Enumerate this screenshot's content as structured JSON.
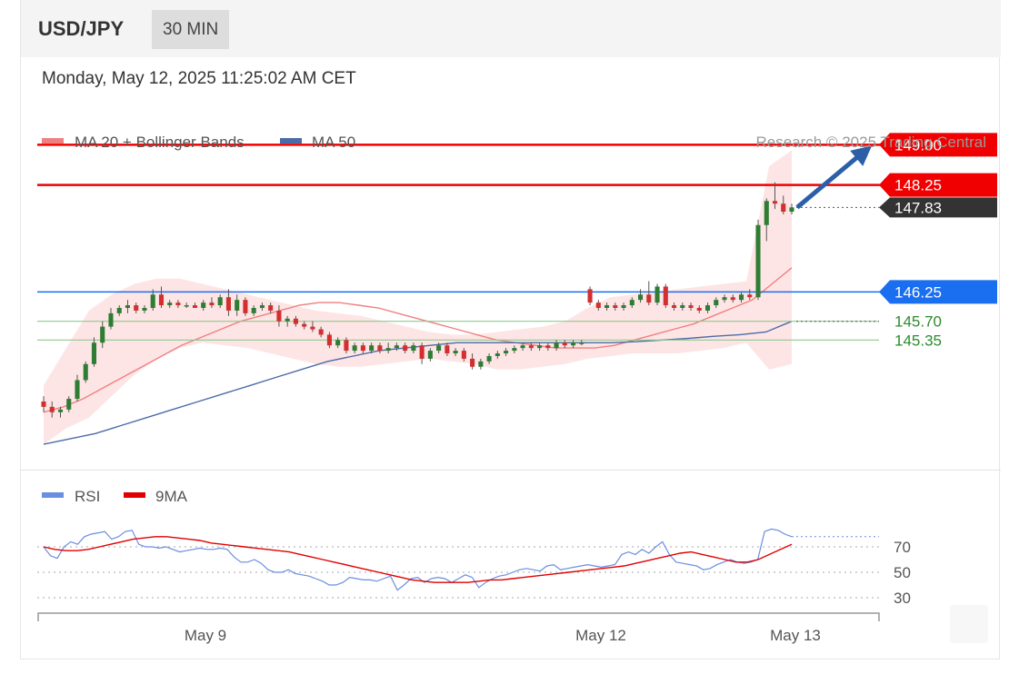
{
  "header": {
    "symbol": "USD/JPY",
    "timeframe": "30 MIN"
  },
  "datetime": "Monday, May 12, 2025 11:25:02 AM CET",
  "copyright": "Research © 2025 Trading Central",
  "colors": {
    "resistance": "#f00000",
    "support": "#1a6ef0",
    "minor_support": "#8fc98f",
    "price_tag": "#333333",
    "up_candle": "#2e7d32",
    "down_candle": "#d32f2f",
    "ma20": "#f08080",
    "ma50": "#4b6ca8",
    "band_fill": "#fde0e0",
    "arrow": "#2c5fa8",
    "rsi": "#6a8ee0",
    "rsi_ma": "#e00000"
  },
  "chart_data": [
    {
      "type": "candlestick",
      "title": "USD/JPY 30 MIN",
      "legend": [
        {
          "name": "MA 20 + Bollinger Bands",
          "color": "#f08080"
        },
        {
          "name": "MA 50",
          "color": "#2c5fa8"
        }
      ],
      "legend_position": "top-left",
      "ylim": [
        143.3,
        149.5
      ],
      "x_labels": [
        "May 9",
        "May 12",
        "May 13"
      ],
      "levels": [
        {
          "label": "149.00",
          "value": 149.0,
          "kind": "resistance"
        },
        {
          "label": "148.25",
          "value": 148.25,
          "kind": "resistance"
        },
        {
          "label": "147.83",
          "value": 147.83,
          "kind": "last-price"
        },
        {
          "label": "146.25",
          "value": 146.25,
          "kind": "pivot"
        },
        {
          "label": "145.70",
          "value": 145.7,
          "kind": "support"
        },
        {
          "label": "145.35",
          "value": 145.35,
          "kind": "support"
        }
      ],
      "candles": [
        [
          144.2,
          144.3,
          144.0,
          144.1
        ],
        [
          144.1,
          144.2,
          143.9,
          144.0
        ],
        [
          144.0,
          144.1,
          143.9,
          144.05
        ],
        [
          144.05,
          144.3,
          144.0,
          144.25
        ],
        [
          144.25,
          144.7,
          144.2,
          144.6
        ],
        [
          144.6,
          144.95,
          144.55,
          144.9
        ],
        [
          144.9,
          145.4,
          144.85,
          145.3
        ],
        [
          145.3,
          145.7,
          145.2,
          145.6
        ],
        [
          145.6,
          145.95,
          145.55,
          145.85
        ],
        [
          145.85,
          146.0,
          145.8,
          145.95
        ],
        [
          145.95,
          146.1,
          145.85,
          146.0
        ],
        [
          146.0,
          146.05,
          145.85,
          145.9
        ],
        [
          145.9,
          146.0,
          145.85,
          145.95
        ],
        [
          145.95,
          146.3,
          145.9,
          146.2
        ],
        [
          146.2,
          146.35,
          145.95,
          146.0
        ],
        [
          146.0,
          146.1,
          145.95,
          146.05
        ],
        [
          146.05,
          146.1,
          145.95,
          146.0
        ],
        [
          146.0,
          146.05,
          145.95,
          146.0
        ],
        [
          146.0,
          146.05,
          145.95,
          145.95
        ],
        [
          145.95,
          146.1,
          145.9,
          146.05
        ],
        [
          146.05,
          146.15,
          145.95,
          146.0
        ],
        [
          146.0,
          146.2,
          145.95,
          146.15
        ],
        [
          146.15,
          146.3,
          145.8,
          145.9
        ],
        [
          145.9,
          146.2,
          145.8,
          146.1
        ],
        [
          146.1,
          146.15,
          145.8,
          145.85
        ],
        [
          145.85,
          146.0,
          145.8,
          145.95
        ],
        [
          145.95,
          146.05,
          145.9,
          146.0
        ],
        [
          146.0,
          146.05,
          145.85,
          145.9
        ],
        [
          145.9,
          146.0,
          145.6,
          145.7
        ],
        [
          145.7,
          145.8,
          145.6,
          145.75
        ],
        [
          145.75,
          145.8,
          145.6,
          145.65
        ],
        [
          145.65,
          145.7,
          145.55,
          145.6
        ],
        [
          145.6,
          145.7,
          145.5,
          145.55
        ],
        [
          145.55,
          145.6,
          145.4,
          145.45
        ],
        [
          145.45,
          145.5,
          145.2,
          145.25
        ],
        [
          145.25,
          145.4,
          145.2,
          145.35
        ],
        [
          145.35,
          145.4,
          145.1,
          145.15
        ],
        [
          145.15,
          145.3,
          145.1,
          145.25
        ],
        [
          145.25,
          145.3,
          145.1,
          145.15
        ],
        [
          145.15,
          145.3,
          145.1,
          145.25
        ],
        [
          145.25,
          145.3,
          145.1,
          145.15
        ],
        [
          145.15,
          145.3,
          145.1,
          145.2
        ],
        [
          145.2,
          145.3,
          145.15,
          145.25
        ],
        [
          145.25,
          145.3,
          145.1,
          145.15
        ],
        [
          145.15,
          145.3,
          145.1,
          145.25
        ],
        [
          145.25,
          145.3,
          144.9,
          145.0
        ],
        [
          145.0,
          145.2,
          144.95,
          145.15
        ],
        [
          145.15,
          145.3,
          145.1,
          145.25
        ],
        [
          145.25,
          145.3,
          145.05,
          145.1
        ],
        [
          145.1,
          145.2,
          145.05,
          145.15
        ],
        [
          145.15,
          145.2,
          144.95,
          145.0
        ],
        [
          145.0,
          145.1,
          144.8,
          144.85
        ],
        [
          144.85,
          145.0,
          144.8,
          144.95
        ],
        [
          144.95,
          145.1,
          144.9,
          145.05
        ],
        [
          145.05,
          145.15,
          145.0,
          145.1
        ],
        [
          145.1,
          145.2,
          145.05,
          145.15
        ],
        [
          145.15,
          145.25,
          145.1,
          145.2
        ],
        [
          145.2,
          145.3,
          145.15,
          145.25
        ],
        [
          145.25,
          145.3,
          145.15,
          145.2
        ],
        [
          145.2,
          145.3,
          145.15,
          145.25
        ],
        [
          145.25,
          145.3,
          145.15,
          145.2
        ],
        [
          145.2,
          145.35,
          145.15,
          145.3
        ],
        [
          145.3,
          145.35,
          145.2,
          145.25
        ],
        [
          145.25,
          145.35,
          145.2,
          145.3
        ],
        [
          145.3,
          145.35,
          145.25,
          145.3
        ],
        [
          146.3,
          146.35,
          146.0,
          146.05
        ],
        [
          146.05,
          146.1,
          145.9,
          145.95
        ],
        [
          145.95,
          146.05,
          145.9,
          146.0
        ],
        [
          146.0,
          146.05,
          145.9,
          145.95
        ],
        [
          145.95,
          146.05,
          145.9,
          146.0
        ],
        [
          146.0,
          146.15,
          145.95,
          146.1
        ],
        [
          146.1,
          146.3,
          146.05,
          146.2
        ],
        [
          146.2,
          146.45,
          146.0,
          146.05
        ],
        [
          146.05,
          146.4,
          146.0,
          146.35
        ],
        [
          146.35,
          146.4,
          145.95,
          146.0
        ],
        [
          146.0,
          146.05,
          145.9,
          145.95
        ],
        [
          145.95,
          146.05,
          145.9,
          146.0
        ],
        [
          146.0,
          146.05,
          145.9,
          145.95
        ],
        [
          145.95,
          146.0,
          145.85,
          145.9
        ],
        [
          145.9,
          146.05,
          145.85,
          146.0
        ],
        [
          146.0,
          146.15,
          145.95,
          146.1
        ],
        [
          146.1,
          146.2,
          146.05,
          146.15
        ],
        [
          146.15,
          146.2,
          146.05,
          146.1
        ],
        [
          146.1,
          146.25,
          146.05,
          146.2
        ],
        [
          146.2,
          146.3,
          146.1,
          146.15
        ],
        [
          146.15,
          147.6,
          146.1,
          147.5
        ],
        [
          147.5,
          148.0,
          147.2,
          147.95
        ],
        [
          147.95,
          148.3,
          147.8,
          147.9
        ],
        [
          147.9,
          148.05,
          147.7,
          147.75
        ],
        [
          147.75,
          147.9,
          147.7,
          147.83
        ]
      ],
      "ma20": [
        144.0,
        144.1,
        144.25,
        144.45,
        144.65,
        144.85,
        145.05,
        145.25,
        145.4,
        145.55,
        145.7,
        145.8,
        145.9,
        146.0,
        146.05,
        146.05,
        146.0,
        145.95,
        145.85,
        145.75,
        145.65,
        145.55,
        145.45,
        145.35,
        145.3,
        145.25,
        145.2,
        145.2,
        145.2,
        145.25,
        145.35,
        145.45,
        145.55,
        145.65,
        145.8,
        145.95,
        146.1,
        146.4,
        146.7
      ],
      "bb_upper": [
        144.5,
        145.2,
        145.9,
        146.2,
        146.4,
        146.5,
        146.5,
        146.4,
        146.3,
        146.2,
        146.1,
        146.0,
        145.9,
        145.85,
        145.8,
        145.7,
        145.6,
        145.5,
        145.45,
        145.45,
        145.5,
        145.55,
        145.6,
        145.7,
        145.95,
        146.15,
        146.2,
        146.25,
        146.3,
        146.35,
        146.4,
        146.45,
        148.6,
        148.9
      ],
      "bb_lower": [
        143.4,
        143.7,
        143.9,
        144.3,
        144.7,
        145.0,
        145.2,
        145.3,
        145.25,
        145.2,
        145.1,
        145.0,
        144.9,
        144.85,
        144.85,
        144.9,
        144.95,
        145.0,
        144.95,
        144.9,
        144.8,
        144.8,
        144.85,
        144.9,
        145.0,
        145.05,
        145.1,
        145.1,
        145.1,
        145.15,
        145.2,
        145.3,
        144.8,
        144.9
      ],
      "ma50": [
        143.4,
        143.5,
        143.6,
        143.75,
        143.9,
        144.05,
        144.2,
        144.35,
        144.5,
        144.65,
        144.8,
        144.95,
        145.05,
        145.15,
        145.2,
        145.25,
        145.3,
        145.3,
        145.3,
        145.3,
        145.3,
        145.3,
        145.3,
        145.32,
        145.35,
        145.38,
        145.42,
        145.45,
        145.5,
        145.7
      ],
      "annotation": "projected move up toward 149.00"
    },
    {
      "type": "line",
      "title": "RSI",
      "legend": [
        {
          "name": "RSI",
          "color": "#6a8ee0"
        },
        {
          "name": "9MA",
          "color": "#e00000"
        }
      ],
      "legend_position": "top-left",
      "ylim": [
        20,
        95
      ],
      "y_ticks": [
        "70",
        "50",
        "30"
      ],
      "x_labels": [
        "May 9",
        "May 12",
        "May 13"
      ],
      "rsi": [
        70,
        63,
        61,
        70,
        74,
        72,
        78,
        80,
        81,
        82,
        76,
        78,
        82,
        83,
        72,
        70,
        70,
        69,
        70,
        68,
        66,
        67,
        68,
        69,
        68,
        68,
        69,
        68,
        62,
        58,
        58,
        60,
        57,
        52,
        50,
        50,
        52,
        49,
        48,
        47,
        45,
        43,
        40,
        40,
        42,
        46,
        45,
        44,
        44,
        43,
        45,
        47,
        36,
        40,
        45,
        46,
        42,
        45,
        46,
        45,
        42,
        45,
        48,
        46,
        38,
        42,
        45,
        47,
        48,
        50,
        52,
        53,
        52,
        51,
        55,
        56,
        52,
        53,
        54,
        55,
        56,
        55,
        54,
        55,
        56,
        64,
        66,
        64,
        68,
        65,
        70,
        74,
        64,
        58,
        57,
        56,
        55,
        52,
        53,
        56,
        58,
        60,
        58,
        57,
        58,
        60,
        82,
        84,
        83,
        80,
        78
      ],
      "rsi_ma": [
        70,
        68,
        67,
        67,
        68,
        70,
        72,
        74,
        76,
        77,
        78,
        78,
        77,
        76,
        75,
        73,
        72,
        71,
        70,
        69,
        68,
        67,
        66,
        64,
        62,
        60,
        58,
        56,
        54,
        52,
        50,
        48,
        46,
        44,
        43,
        42,
        42,
        42,
        42,
        43,
        44,
        44,
        45,
        46,
        47,
        48,
        49,
        50,
        51,
        52,
        53,
        54,
        55,
        57,
        59,
        61,
        63,
        65,
        66,
        64,
        62,
        60,
        58,
        58,
        60,
        64,
        68,
        72
      ]
    }
  ],
  "corner_button_icon": "scroll-to-top-icon"
}
